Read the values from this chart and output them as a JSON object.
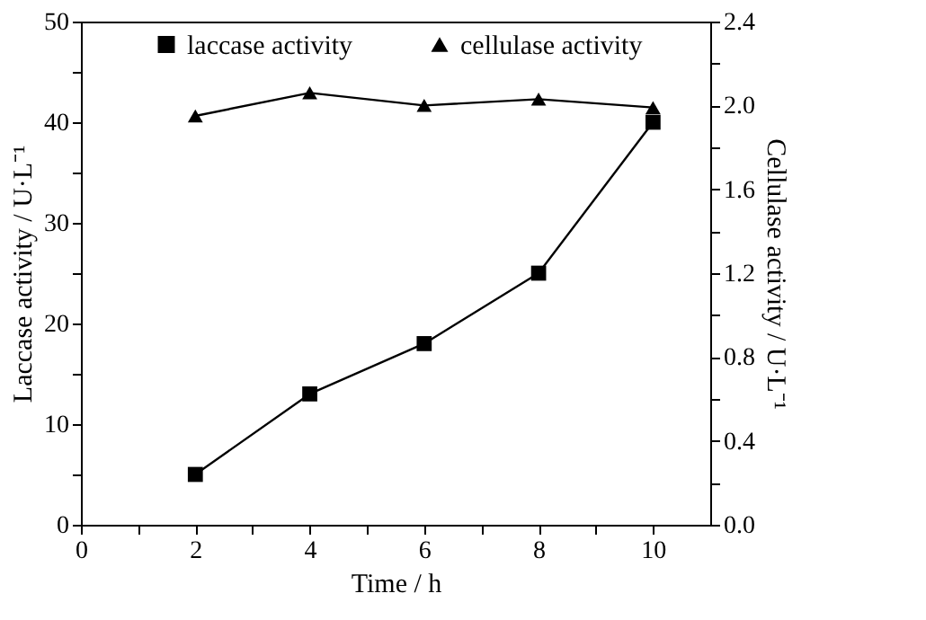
{
  "chart_data": {
    "type": "line",
    "xlabel": "Time / h",
    "ylabel": "Laccase activity / U·L⁻¹",
    "y2label": "Cellulase activity / U·L⁻¹",
    "x": [
      2,
      4,
      6,
      8,
      10
    ],
    "series": [
      {
        "name": "laccase activity",
        "color": "#000000",
        "marker": "square",
        "values": [
          5,
          13,
          18,
          25,
          40
        ]
      },
      {
        "name": "cellulase activity",
        "color": "#000000",
        "marker": "triangle",
        "axis": "y2",
        "values": [
          1.95,
          2.06,
          2.0,
          2.03,
          1.99
        ]
      }
    ],
    "xlim": [
      0,
      11
    ],
    "xticks": [
      0,
      {
        "value": 1,
        "label": null
      },
      2,
      {
        "value": 3,
        "label": null
      },
      4,
      {
        "value": 5,
        "label": null
      },
      6,
      {
        "value": 7,
        "label": null
      },
      8,
      {
        "value": 9,
        "label": null
      },
      10
    ],
    "ylim": [
      0,
      50
    ],
    "yticks": [
      0,
      {
        "value": 5,
        "label": null
      },
      10,
      {
        "value": 15,
        "label": null
      },
      20,
      {
        "value": 25,
        "label": null
      },
      30,
      {
        "value": 35,
        "label": null
      },
      40,
      {
        "value": 45,
        "label": null
      },
      50
    ],
    "y2lim": [
      0,
      2.4
    ],
    "y2ticks": [
      {
        "value": 0,
        "label": "0.0"
      },
      {
        "value": 0.2,
        "label": null
      },
      0.4,
      {
        "value": 0.6,
        "label": null
      },
      0.8,
      {
        "value": 1.0,
        "label": null
      },
      1.2,
      {
        "value": 1.4,
        "label": null
      },
      1.6,
      {
        "value": 1.8,
        "label": null
      },
      {
        "value": 2.0,
        "label": "2.0"
      },
      {
        "value": 2.2,
        "label": null
      },
      2.4
    ],
    "grid": false,
    "legend": "top",
    "line_style": "solid"
  }
}
